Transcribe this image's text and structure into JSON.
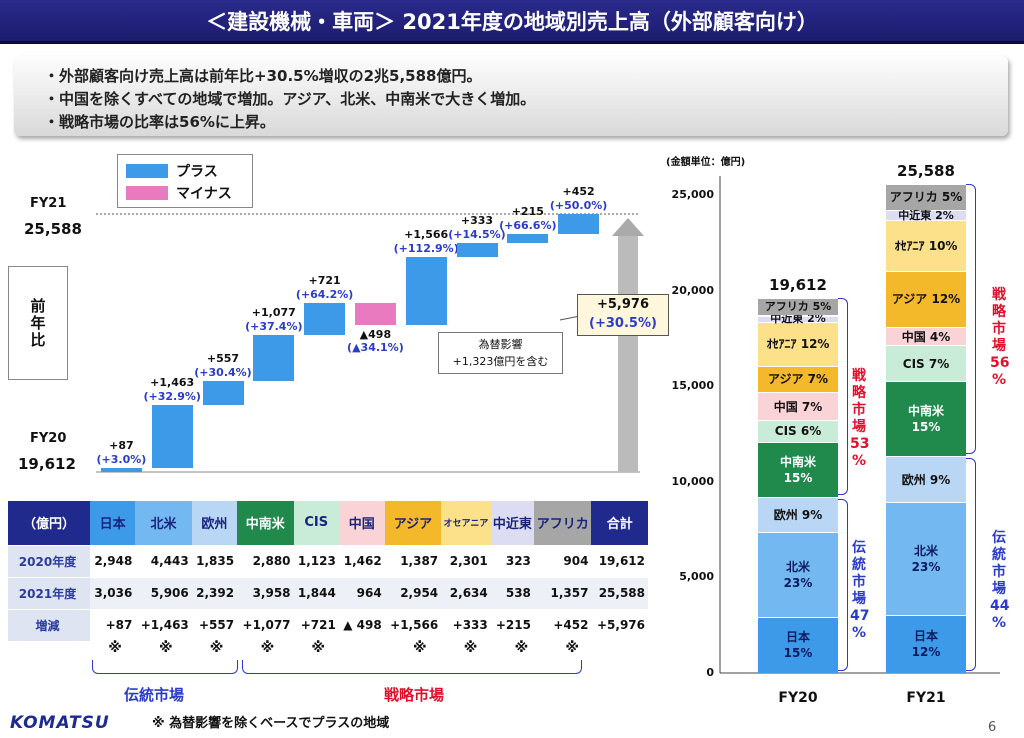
{
  "title": "＜建設機械・車両＞ 2021年度の地域別売上高（外部顧客向け）",
  "summary": [
    "・外部顧客向け売上高は前年比+30.5%増収の2兆5,588億円。",
    "・中国を除くすべての地域で増加。アジア、北米、中南米で大きく増加。",
    "・戦略市場の比率は56%に上昇。"
  ],
  "legend": {
    "plus": "プラス",
    "minus": "マイナス",
    "plus_color": "#3d9ae8",
    "minus_color": "#e97ac0"
  },
  "waterfall": {
    "fy21_label": "FY21",
    "fy21_value": "25,588",
    "fy20_label": "FY20",
    "fy20_value": "19,612",
    "side_label": "前年比",
    "steps": [
      {
        "region": "日本",
        "change": 87,
        "label": "+87",
        "pct": "(+3.0%)"
      },
      {
        "region": "北米",
        "change": 1463,
        "label": "+1,463",
        "pct": "(+32.9%)"
      },
      {
        "region": "欧州",
        "change": 557,
        "label": "+557",
        "pct": "(+30.4%)"
      },
      {
        "region": "中南米",
        "change": 1077,
        "label": "+1,077",
        "pct": "(+37.4%)"
      },
      {
        "region": "CIS",
        "change": 721,
        "label": "+721",
        "pct": "(+64.2%)"
      },
      {
        "region": "中国",
        "change": -498,
        "label": "▲498",
        "pct": "(▲34.1%)"
      },
      {
        "region": "アジア",
        "change": 1566,
        "label": "+1,566",
        "pct": "(+112.9%)"
      },
      {
        "region": "オセアニア",
        "change": 333,
        "label": "+333",
        "pct": "(+14.5%)"
      },
      {
        "region": "中近東",
        "change": 215,
        "label": "+215",
        "pct": "(+66.6%)"
      },
      {
        "region": "アフリカ",
        "change": 452,
        "label": "+452",
        "pct": "(+50.0%)"
      }
    ],
    "total_label": "+5,976",
    "total_pct": "(+30.5%)",
    "fx_note_1": "為替影響",
    "fx_note_2": "+1,323億円を含む"
  },
  "table": {
    "unit": "（億円）",
    "columns": [
      {
        "name": "日本",
        "color": "#3d9ae8",
        "text": "#1a237e"
      },
      {
        "name": "北米",
        "color": "#74b8f2",
        "text": "#1a237e"
      },
      {
        "name": "欧州",
        "color": "#b9d6f5",
        "text": "#1a237e"
      },
      {
        "name": "中南米",
        "color": "#1f8a4c",
        "text": "#ffffff"
      },
      {
        "name": "CIS",
        "color": "#c9ecd9",
        "text": "#1a237e"
      },
      {
        "name": "中国",
        "color": "#f9d3d6",
        "text": "#1a237e"
      },
      {
        "name": "アジア",
        "color": "#f4b92b",
        "text": "#1a237e"
      },
      {
        "name": "オセアニア",
        "color": "#fde18a",
        "text": "#1a237e"
      },
      {
        "name": "中近東",
        "color": "#dcdcf3",
        "text": "#1a237e"
      },
      {
        "name": "アフリカ",
        "color": "#a6a6a6",
        "text": "#1a237e"
      },
      {
        "name": "合計",
        "color": "#1f2a8c",
        "text": "#ffffff"
      }
    ],
    "rows": [
      {
        "label": "2020年度",
        "values": [
          "2,948",
          "4,443",
          "1,835",
          "2,880",
          "1,123",
          "1,462",
          "1,387",
          "2,301",
          "323",
          "904",
          "19,612"
        ]
      },
      {
        "label": "2021年度",
        "values": [
          "3,036",
          "5,906",
          "2,392",
          "3,958",
          "1,844",
          "964",
          "2,954",
          "2,634",
          "538",
          "1,357",
          "25,588"
        ]
      },
      {
        "label": "増減",
        "values": [
          "+87",
          "+1,463",
          "+557",
          "+1,077",
          "+721",
          "▲ 498",
          "+1,566",
          "+333",
          "+215",
          "+452",
          "+5,976"
        ]
      }
    ],
    "kome_mark": "※",
    "traditional_label": "伝統市場",
    "strategic_label": "戦略市場",
    "footnote": "※ 為替影響を除くベースでプラスの地域"
  },
  "chart_data": [
    {
      "type": "bar",
      "title": "",
      "categories": [
        "日本",
        "北米",
        "欧州",
        "中南米",
        "CIS",
        "中国",
        "アジア",
        "オセアニア",
        "中近東",
        "アフリカ"
      ],
      "start": 19612,
      "values": [
        87,
        1463,
        557,
        1077,
        721,
        -498,
        1566,
        333,
        215,
        452
      ],
      "end": 25588
    },
    {
      "type": "bar",
      "stacked": true,
      "unit_label": "(金額単位：億円)",
      "categories": [
        "FY20",
        "FY21"
      ],
      "totals": [
        "19,612",
        "25,588"
      ],
      "ylim": [
        0,
        26000
      ],
      "yticks": [
        "0",
        "5,000",
        "10,000",
        "15,000",
        "20,000",
        "25,000"
      ],
      "series": [
        {
          "name": "日本",
          "values": [
            2948,
            3036
          ],
          "labels": [
            "日本\n15%",
            "日本\n12%"
          ],
          "color": "#3d9ae8"
        },
        {
          "name": "北米",
          "values": [
            4443,
            5906
          ],
          "labels": [
            "北米\n23%",
            "北米\n23%"
          ],
          "color": "#74b8f2"
        },
        {
          "name": "欧州",
          "values": [
            1835,
            2392
          ],
          "labels": [
            "欧州 9%",
            "欧州 9%"
          ],
          "color": "#b9d6f5"
        },
        {
          "name": "中南米",
          "values": [
            2880,
            3958
          ],
          "labels": [
            "中南米\n15%",
            "中南米\n15%"
          ],
          "color": "#1f8a4c"
        },
        {
          "name": "CIS",
          "values": [
            1123,
            1844
          ],
          "labels": [
            "CIS 6%",
            "CIS 7%"
          ],
          "color": "#c9ecd9"
        },
        {
          "name": "中国",
          "values": [
            1462,
            964
          ],
          "labels": [
            "中国 7%",
            "中国 4%"
          ],
          "color": "#f9d3d6"
        },
        {
          "name": "アジア",
          "values": [
            1387,
            2954
          ],
          "labels": [
            "アジア 7%",
            "アジア 12%"
          ],
          "color": "#f4b92b"
        },
        {
          "name": "オセアニア",
          "values": [
            2301,
            2634
          ],
          "labels": [
            "ｵｾｱﾆｱ 12%",
            "ｵｾｱﾆｱ 10%"
          ],
          "color": "#fde18a"
        },
        {
          "name": "中近東",
          "values": [
            323,
            538
          ],
          "labels": [
            "中近東 2%",
            "中近東 2%"
          ],
          "color": "#dcdcf3"
        },
        {
          "name": "アフリカ",
          "values": [
            904,
            1357
          ],
          "labels": [
            "アフリカ 5%",
            "アフリカ 5%"
          ],
          "color": "#a6a6a6"
        }
      ],
      "strategic": [
        "戦略市場",
        "53%",
        "56%"
      ],
      "traditional": [
        "伝統市場",
        "47%",
        "44%"
      ]
    }
  ],
  "footer": {
    "logo": "KOMATSU",
    "page": "6"
  }
}
